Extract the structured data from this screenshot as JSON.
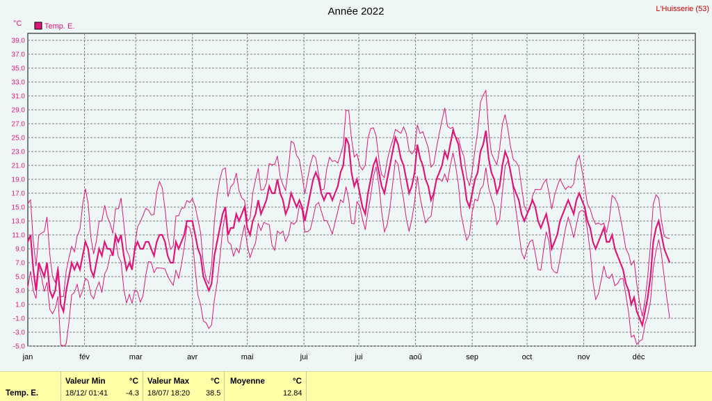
{
  "station": "L'Huisserie (53)",
  "footer": {
    "series_label": "Temp. E.",
    "min_label": "Valeur Min",
    "min_unit": "°C",
    "min_time": "18/12/  01:41",
    "min_value": "-4.3",
    "max_label": "Valeur Max",
    "max_unit": "°C",
    "max_time": "18/07/  18:20",
    "max_value": "38.5",
    "avg_label": "Moyenne",
    "avg_unit": "°C",
    "avg_value": "12.84"
  },
  "colors": {
    "series": "#e0157a",
    "axis_text": "#e0157a",
    "grid": "#808080",
    "background": "#eef6f6",
    "footer_bg": "#ffffa8"
  },
  "chart_data": {
    "type": "line",
    "title": "Année 2022",
    "ylabel": "°C",
    "ylim": [
      -5,
      40
    ],
    "y_ticks": [
      "-5.0",
      "-3.0",
      "-1.0",
      "1.0",
      "3.0",
      "5.0",
      "7.0",
      "9.0",
      "11.0",
      "13.0",
      "15.0",
      "17.0",
      "19.0",
      "21.0",
      "23.0",
      "25.0",
      "27.0",
      "29.0",
      "31.0",
      "33.0",
      "35.0",
      "37.0",
      "39.0"
    ],
    "x_ticks": [
      "jan",
      "fév",
      "mar",
      "avr",
      "mai",
      "jui",
      "jui",
      "aoû",
      "sep",
      "oct",
      "nov",
      "déc"
    ],
    "x_range_days": [
      0,
      365
    ],
    "grid": true,
    "legend_position": "top-left",
    "series": [
      {
        "name": "Temp. E.",
        "role": "mean",
        "values": [
          10,
          11,
          6,
          3,
          7,
          6,
          5,
          7,
          3,
          2,
          3,
          6,
          1,
          0,
          3,
          5,
          7,
          6,
          7,
          6,
          8,
          10,
          9,
          6,
          5,
          7,
          9,
          8,
          10,
          9,
          9,
          8,
          11,
          10,
          11,
          8,
          6,
          7,
          6,
          9,
          10,
          9,
          9,
          10,
          10,
          9,
          8,
          10,
          11,
          11,
          10,
          8,
          7,
          7,
          10,
          9,
          10,
          11,
          13,
          13,
          13,
          11,
          9,
          8,
          5,
          4,
          3,
          4,
          8,
          10,
          12,
          14,
          15,
          11,
          12,
          12,
          14,
          13,
          14,
          15,
          12,
          11,
          13,
          14,
          16,
          14,
          15,
          16,
          18,
          17,
          17,
          19,
          17,
          16,
          14,
          15,
          17,
          16,
          15,
          16,
          15,
          13,
          15,
          17,
          19,
          20,
          19,
          17,
          16,
          17,
          17,
          16,
          17,
          18,
          20,
          21,
          25,
          24,
          20,
          18,
          19,
          17,
          15,
          14,
          17,
          19,
          21,
          22,
          20,
          18,
          17,
          19,
          21,
          23,
          25,
          24,
          22,
          21,
          19,
          17,
          18,
          20,
          24,
          22,
          21,
          19,
          18,
          16,
          17,
          19,
          20,
          21,
          23,
          22,
          24,
          26,
          25,
          24,
          21,
          19,
          16,
          15,
          17,
          19,
          20,
          23,
          24,
          26,
          22,
          20,
          19,
          17,
          18,
          21,
          23,
          22,
          20,
          18,
          17,
          16,
          14,
          13,
          14,
          15,
          16,
          15,
          13,
          12,
          13,
          14,
          12,
          9,
          10,
          11,
          13,
          14,
          15,
          16,
          15,
          14,
          16,
          17,
          16,
          15,
          13,
          12,
          10,
          9,
          10,
          11,
          12,
          10,
          10,
          11,
          9,
          8,
          7,
          6,
          4,
          3,
          1,
          2,
          0,
          -1,
          -2,
          0,
          2,
          5,
          10,
          12,
          13,
          11,
          9,
          8,
          7
        ],
        "step_days": 1.5
      }
    ]
  }
}
